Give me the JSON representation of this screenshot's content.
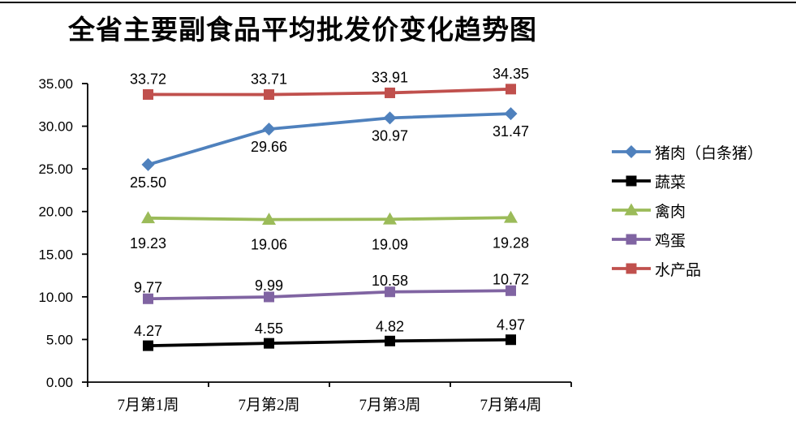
{
  "chart_data": {
    "type": "line",
    "title": "全省主要副食品平均批发价变化趋势图",
    "categories": [
      "7月第1周",
      "7月第2周",
      "7月第3周",
      "7月第4周"
    ],
    "series": [
      {
        "id": "pork",
        "name": "猪肉（白条猪）",
        "values": [
          25.5,
          29.66,
          30.97,
          31.47
        ],
        "color": "#4F81BD",
        "marker": "diamond",
        "label_position": "below"
      },
      {
        "id": "vegetables",
        "name": "蔬菜",
        "values": [
          4.27,
          4.55,
          4.82,
          4.97
        ],
        "color": "#000000",
        "marker": "square",
        "label_position": "above"
      },
      {
        "id": "poultry",
        "name": "禽肉",
        "values": [
          19.23,
          19.06,
          19.09,
          19.28
        ],
        "color": "#9BBB59",
        "marker": "triangle",
        "label_position": "below"
      },
      {
        "id": "eggs",
        "name": "鸡蛋",
        "values": [
          9.77,
          9.99,
          10.58,
          10.72
        ],
        "color": "#8064A2",
        "marker": "square",
        "label_position": "above"
      },
      {
        "id": "aquatic-products",
        "name": "水产品",
        "values": [
          33.72,
          33.71,
          33.91,
          34.35
        ],
        "color": "#C0504D",
        "marker": "square",
        "label_position": "above"
      }
    ],
    "y_axis": {
      "min": 0,
      "max": 35,
      "step": 5,
      "tick_labels": [
        "0.00",
        "5.00",
        "10.00",
        "15.00",
        "20.00",
        "25.00",
        "30.00",
        "35.00"
      ]
    },
    "legend_position": "right",
    "grid": false,
    "data_label_format": "0.00",
    "axis_color": "#000000"
  }
}
